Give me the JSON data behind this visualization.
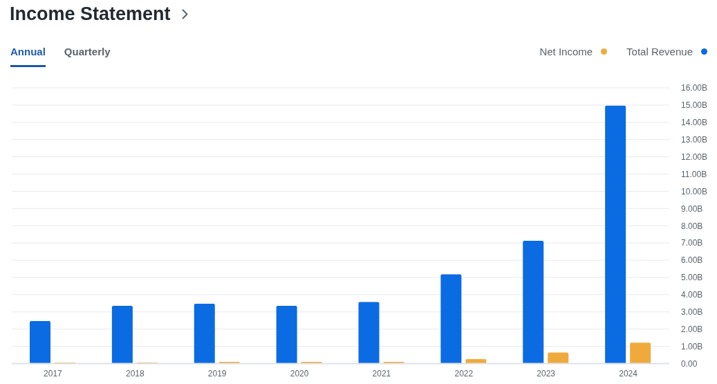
{
  "chart_data": {
    "type": "bar",
    "title": "Income Statement",
    "annotations": [
      "Annual",
      "Quarterly"
    ],
    "categories": [
      "2017",
      "2018",
      "2019",
      "2020",
      "2021",
      "2022",
      "2023",
      "2024"
    ],
    "series": [
      {
        "name": "Total Revenue",
        "color": "#0b6be3",
        "values": [
          2.47,
          3.35,
          3.47,
          3.35,
          3.57,
          5.18,
          7.13,
          14.97
        ]
      },
      {
        "name": "Net Income",
        "color": "#f0aa3c",
        "values": [
          0.06,
          0.06,
          0.1,
          0.1,
          0.1,
          0.26,
          0.64,
          1.21
        ]
      }
    ],
    "ylim": [
      0,
      16
    ],
    "yticks": [
      {
        "value": 0,
        "label": "0.00"
      },
      {
        "value": 1,
        "label": "1.00B"
      },
      {
        "value": 2,
        "label": "2.00B"
      },
      {
        "value": 3,
        "label": "3.00B"
      },
      {
        "value": 4,
        "label": "4.00B"
      },
      {
        "value": 5,
        "label": "5.00B"
      },
      {
        "value": 6,
        "label": "6.00B"
      },
      {
        "value": 7,
        "label": "7.00B"
      },
      {
        "value": 8,
        "label": "8.00B"
      },
      {
        "value": 9,
        "label": "9.00B"
      },
      {
        "value": 10,
        "label": "10.00B"
      },
      {
        "value": 11,
        "label": "11.00B"
      },
      {
        "value": 12,
        "label": "12.00B"
      },
      {
        "value": 13,
        "label": "13.00B"
      },
      {
        "value": 14,
        "label": "14.00B"
      },
      {
        "value": 15,
        "label": "15.00B"
      },
      {
        "value": 16,
        "label": "16.00B"
      }
    ],
    "grid": "y",
    "legend": "top right"
  }
}
